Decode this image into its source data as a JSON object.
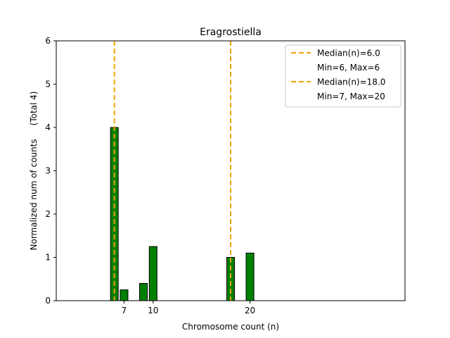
{
  "chart_data": {
    "type": "bar",
    "title": "Eragrostiella",
    "xlabel": "Chromosome count (n)",
    "ylabel": "Normalized num of counts     (Total 4)",
    "xlim": [
      0,
      36
    ],
    "ylim": [
      0,
      6
    ],
    "xticks": [
      7,
      10,
      20
    ],
    "yticks": [
      0,
      1,
      2,
      3,
      4,
      5,
      6
    ],
    "bar_width": 0.8,
    "bar_color": "#008000",
    "bar_edge_color": "#000000",
    "median_line_color": "#f0a30a",
    "bars": [
      {
        "x": 6,
        "value": 4.0
      },
      {
        "x": 7,
        "value": 0.25
      },
      {
        "x": 9,
        "value": 0.4
      },
      {
        "x": 10,
        "value": 1.25
      },
      {
        "x": 18,
        "value": 1.0
      },
      {
        "x": 20,
        "value": 1.1
      }
    ],
    "baseline_segment": [
      0,
      6
    ],
    "median_lines": [
      6,
      18
    ],
    "legend": {
      "placement": "top-right",
      "entries": [
        {
          "label": "Median(n)=6.0",
          "has_line": true
        },
        {
          "label": "Min=6, Max=6",
          "has_line": false
        },
        {
          "label": "Median(n)=18.0",
          "has_line": true
        },
        {
          "label": "Min=7, Max=20",
          "has_line": false
        }
      ]
    }
  }
}
